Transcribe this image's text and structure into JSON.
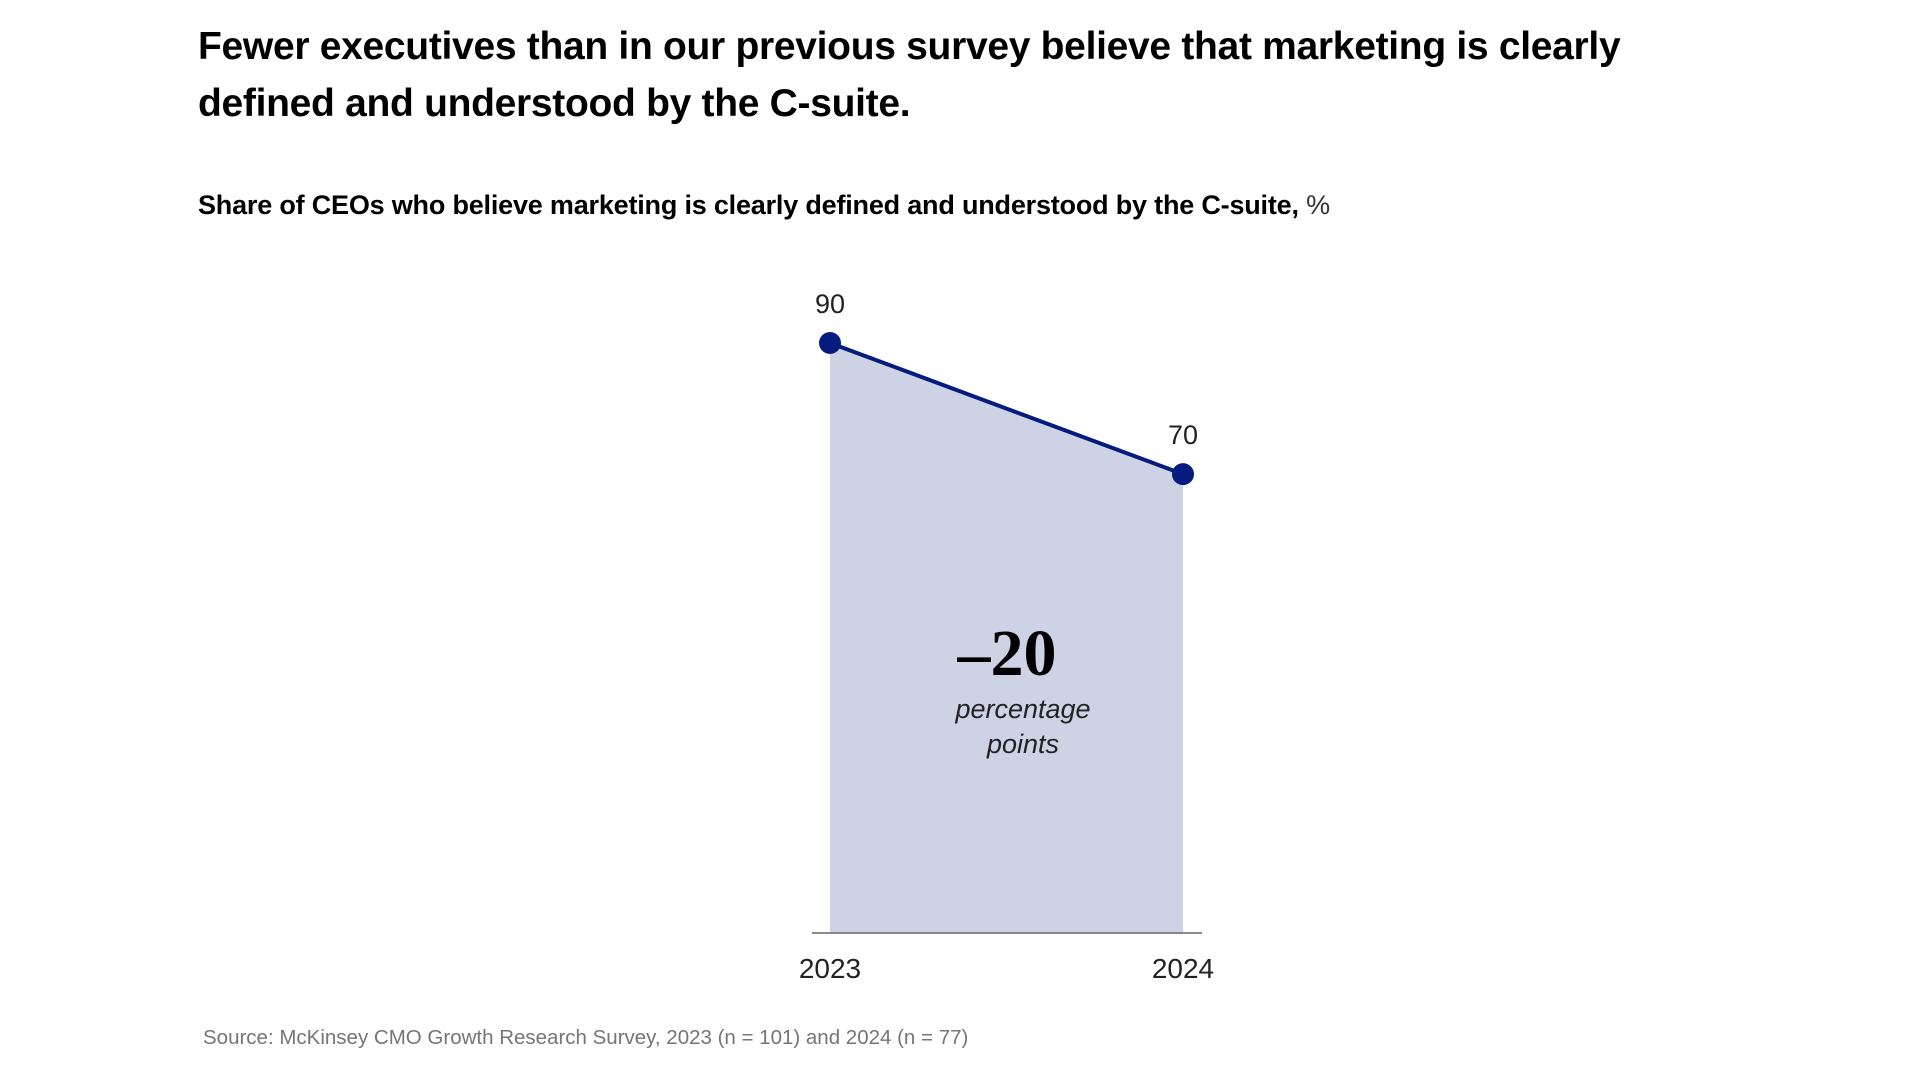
{
  "title": "Fewer executives than in our previous survey believe that marketing is clearly defined and understood by the C-suite.",
  "source": "Source: McKinsey CMO Growth Research Survey, 2023 (n = 101) and 2024 (n = 77)",
  "colors": {
    "line": "#051c7e",
    "fill": "#cdd2e5",
    "axis": "#666666"
  },
  "chart_data": {
    "type": "area",
    "title": "Share of CEOs who believe marketing is clearly defined and understood by the C-suite,",
    "unit": "%",
    "categories": [
      "2023",
      "2024"
    ],
    "values": [
      90,
      70
    ],
    "value_labels": [
      "90",
      "70"
    ],
    "ylim": [
      0,
      90
    ],
    "grid": false,
    "annotation": {
      "value": "–20",
      "label_line1": "percentage",
      "label_line2": "points"
    }
  }
}
